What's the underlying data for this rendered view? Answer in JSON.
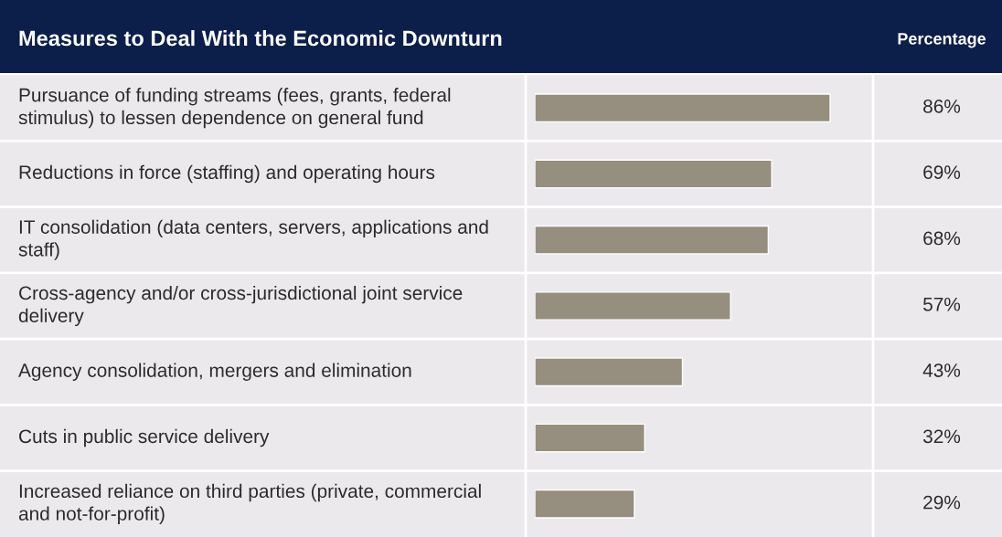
{
  "chart_data": {
    "type": "bar",
    "orientation": "horizontal",
    "title": "Measures to Deal With the Economic Downturn",
    "xlabel": "Percentage",
    "categories": [
      "Pursuance of funding streams (fees, grants, federal stimulus) to lessen dependence on general fund",
      "Reductions in force (staffing) and operating hours",
      "IT consolidation (data centers, servers, applications and staff)",
      "Cross-agency and/or cross-jurisdictional joint service delivery",
      "Agency consolidation, mergers and elimination",
      "Cuts in public service delivery",
      "Increased reliance on third parties (private, commercial and not-for-profit)"
    ],
    "values": [
      86,
      69,
      68,
      57,
      43,
      32,
      29
    ],
    "value_labels": [
      "86%",
      "69%",
      "68%",
      "57%",
      "43%",
      "32%",
      "29%"
    ],
    "color": "#968e7e"
  }
}
